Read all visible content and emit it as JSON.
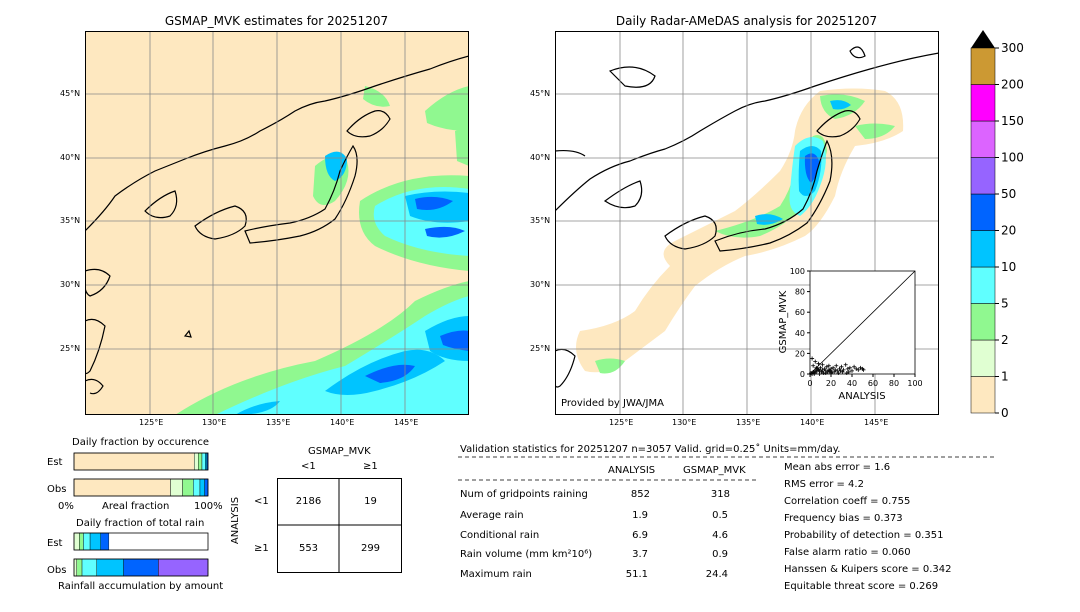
{
  "left_map": {
    "title": "GSMAP_MVK estimates for 20251207",
    "lat_labels": [
      "45°N",
      "40°N",
      "35°N",
      "30°N",
      "25°N"
    ],
    "lon_labels": [
      "125°E",
      "130°E",
      "135°E",
      "140°E",
      "145°E"
    ]
  },
  "right_map": {
    "title": "Daily Radar-AMeDAS analysis for 20251207",
    "lat_labels": [
      "45°N",
      "40°N",
      "35°N",
      "30°N",
      "25°N"
    ],
    "lon_labels": [
      "125°E",
      "130°E",
      "135°E",
      "140°E",
      "145°E"
    ],
    "credit": "Provided by JWA/JMA"
  },
  "colorbar": {
    "levels": [
      "0",
      "1",
      "2",
      "5",
      "10",
      "20",
      "50",
      "100",
      "150",
      "200",
      "300"
    ],
    "colors": [
      "#fee8c0",
      "#e0ffd2",
      "#90f890",
      "#60ffff",
      "#00c4ff",
      "#0064ff",
      "#9664ff",
      "#dc64ff",
      "#ff00ff",
      "#cc9933"
    ]
  },
  "scatter": {
    "xlabel": "ANALYSIS",
    "ylabel": "GSMAP_MVK",
    "ticks": [
      "0",
      "20",
      "40",
      "60",
      "80",
      "100"
    ],
    "points": [
      [
        1,
        1
      ],
      [
        2,
        0
      ],
      [
        3,
        2
      ],
      [
        4,
        1
      ],
      [
        5,
        3
      ],
      [
        6,
        2
      ],
      [
        7,
        5
      ],
      [
        8,
        4
      ],
      [
        9,
        3
      ],
      [
        10,
        6
      ],
      [
        11,
        2
      ],
      [
        12,
        4
      ],
      [
        13,
        1
      ],
      [
        14,
        5
      ],
      [
        15,
        3
      ],
      [
        16,
        7
      ],
      [
        17,
        2
      ],
      [
        18,
        4
      ],
      [
        19,
        3
      ],
      [
        20,
        5
      ],
      [
        21,
        2
      ],
      [
        22,
        6
      ],
      [
        24,
        4
      ],
      [
        25,
        8
      ],
      [
        26,
        3
      ],
      [
        28,
        5
      ],
      [
        30,
        7
      ],
      [
        32,
        4
      ],
      [
        34,
        9
      ],
      [
        36,
        5
      ],
      [
        38,
        6
      ],
      [
        40,
        3
      ],
      [
        42,
        7
      ],
      [
        44,
        5
      ],
      [
        46,
        4
      ],
      [
        48,
        6
      ],
      [
        50,
        5
      ],
      [
        51,
        4
      ],
      [
        3,
        8
      ],
      [
        5,
        12
      ],
      [
        8,
        10
      ],
      [
        2,
        15
      ],
      [
        6,
        6
      ],
      [
        12,
        9
      ],
      [
        18,
        8
      ],
      [
        23,
        2
      ],
      [
        27,
        1
      ],
      [
        31,
        2
      ],
      [
        35,
        1
      ],
      [
        15,
        1
      ],
      [
        9,
        0
      ],
      [
        4,
        0
      ],
      [
        20,
        1
      ],
      [
        29,
        3
      ],
      [
        37,
        2
      ]
    ]
  },
  "fraction_occurrence": {
    "title": "Daily fraction by occurence",
    "row_labels": [
      "Est",
      "Obs"
    ],
    "axis_left": "0%",
    "axis_mid": "Areal fraction",
    "axis_right": "100%",
    "est": [
      0.897,
      0.03,
      0.028,
      0.025,
      0.012,
      0.008
    ],
    "obs": [
      0.72,
      0.09,
      0.08,
      0.05,
      0.035,
      0.025
    ]
  },
  "fraction_rain": {
    "title": "Daily fraction of total rain",
    "row_labels": [
      "Est",
      "Obs"
    ],
    "axis_label": "Rainfall accumulation by amount",
    "est": [
      0.04,
      0.03,
      0.05,
      0.08,
      0.06,
      0.0
    ],
    "obs": [
      0.02,
      0.04,
      0.11,
      0.2,
      0.26,
      0.37
    ]
  },
  "contingency": {
    "title": "GSMAP_MVK",
    "col_labels": [
      "<1",
      "≥1"
    ],
    "row_axis": "ANALYSIS",
    "row_labels": [
      "<1",
      "≥1"
    ],
    "cells": [
      [
        "2186",
        "19"
      ],
      [
        "553",
        "299"
      ]
    ]
  },
  "validation": {
    "header": "Validation statistics for 20251207  n=3057 Valid. grid=0.25˚ Units=mm/day.",
    "col_analysis": "ANALYSIS",
    "col_gsmap": "GSMAP_MVK",
    "rows": [
      {
        "label": "Num of gridpoints raining",
        "analysis": "852",
        "gsmap": "318"
      },
      {
        "label": "Average rain",
        "analysis": "1.9",
        "gsmap": "0.5"
      },
      {
        "label": "Conditional rain",
        "analysis": "6.9",
        "gsmap": "4.6"
      },
      {
        "label": "Rain volume (mm km²10⁶)",
        "analysis": "3.7",
        "gsmap": "0.9"
      },
      {
        "label": "Maximum rain",
        "analysis": "51.1",
        "gsmap": "24.4"
      }
    ],
    "metrics": [
      "Mean abs error =    1.6",
      "RMS error =    4.2",
      "Correlation coeff =  0.755",
      "Frequency bias =  0.373",
      "Probability of detection =  0.351",
      "False alarm ratio =  0.060",
      "Hanssen & Kuipers score =  0.342",
      "Equitable threat score =  0.269"
    ]
  }
}
